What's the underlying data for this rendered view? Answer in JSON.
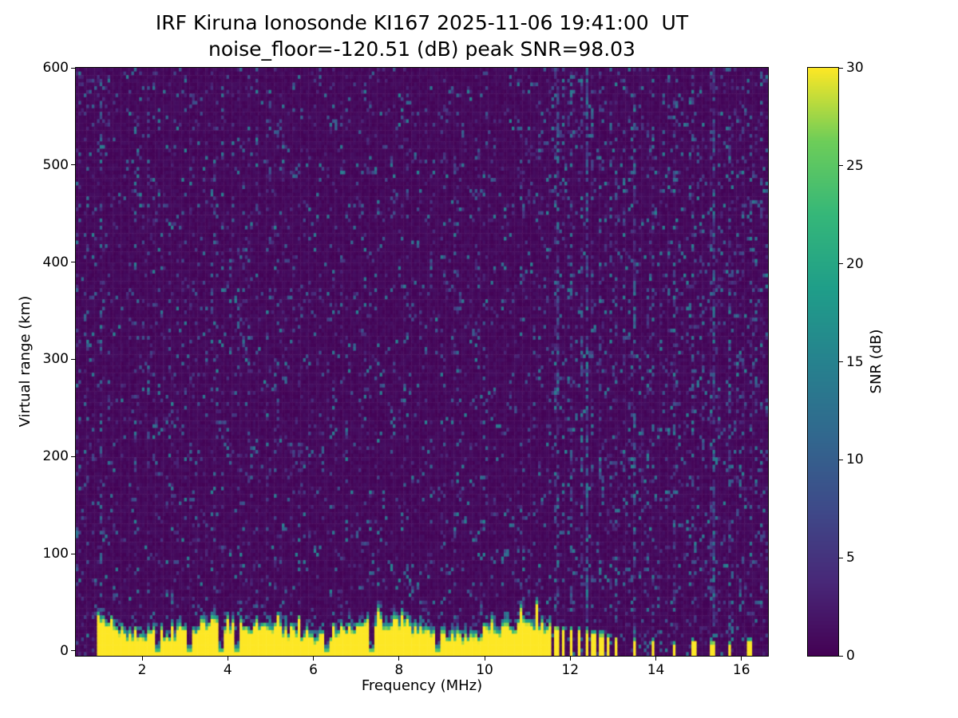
{
  "figure": {
    "title_line1": "IRF Kiruna Ionosonde KI167 2025-11-06 19:41:00  UT",
    "title_line2": "noise_floor=-120.51 (dB) peak SNR=98.03",
    "xlabel": "Frequency (MHz)",
    "ylabel": "Virtual range (km)",
    "colorbar_label": "SNR (dB)"
  },
  "chart_data": {
    "type": "heatmap",
    "title": "IRF Kiruna Ionosonde KI167 2025-11-06 19:41:00  UT\nnoise_floor=-120.51 (dB) peak SNR=98.03",
    "station": "IRF Kiruna Ionosonde KI167",
    "timestamp_ut": "2025-11-06 19:41:00",
    "noise_floor_db": -120.51,
    "peak_snr_db": 98.03,
    "xlabel": "Frequency (MHz)",
    "ylabel": "Virtual range (km)",
    "x_range": [
      0.45,
      16.62
    ],
    "y_range": [
      -5,
      600
    ],
    "x_ticks": [
      2,
      4,
      6,
      8,
      10,
      12,
      14,
      16
    ],
    "y_ticks": [
      0,
      100,
      200,
      300,
      400,
      500,
      600
    ],
    "grid": false,
    "colorbar": {
      "label": "SNR (dB)",
      "range": [
        0,
        30
      ],
      "ticks": [
        0,
        5,
        10,
        15,
        20,
        25,
        30
      ],
      "colormap": "viridis",
      "position": "right"
    },
    "render": {
      "seed": 1337,
      "nx": 262,
      "ny": 160,
      "background_value_max": 1.2,
      "speckle": {
        "probability": 0.09,
        "value_min": 3,
        "value_max": 15
      },
      "ground_echo": {
        "f_start": 0.95,
        "f_end": 11.55,
        "top_km_mean": 27,
        "top_km_jitter": 8,
        "saturated_value": 30,
        "fringe_chance": 0.45
      },
      "notches": [
        2.35,
        3.1,
        3.85,
        4.2,
        6.3,
        7.35,
        8.9
      ],
      "pulse_bars": [
        {
          "f": 11.68,
          "top_km": 27
        },
        {
          "f": 11.85,
          "top_km": 26
        },
        {
          "f": 12.02,
          "top_km": 25
        },
        {
          "f": 12.2,
          "top_km": 24
        },
        {
          "f": 12.38,
          "top_km": 23
        },
        {
          "f": 12.55,
          "top_km": 21
        },
        {
          "f": 12.72,
          "top_km": 20
        },
        {
          "f": 12.9,
          "top_km": 18
        },
        {
          "f": 13.08,
          "top_km": 16
        },
        {
          "f": 13.5,
          "top_km": 14
        },
        {
          "f": 13.95,
          "top_km": 13
        },
        {
          "f": 14.42,
          "top_km": 10
        },
        {
          "f": 14.88,
          "top_km": 13
        },
        {
          "f": 15.32,
          "top_km": 12
        },
        {
          "f": 15.72,
          "top_km": 10
        },
        {
          "f": 16.2,
          "top_km": 13
        }
      ],
      "noisy_columns": [
        1.02,
        11.68,
        12.02,
        12.38,
        12.72,
        13.08,
        13.5,
        13.95,
        14.42,
        14.88,
        15.32,
        15.72,
        16.2
      ]
    }
  }
}
